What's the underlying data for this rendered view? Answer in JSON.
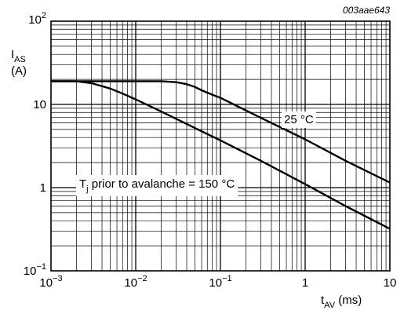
{
  "chart_data": {
    "type": "line",
    "figure_code": "003aae643",
    "ylabel": {
      "main": "I",
      "sub": "AS",
      "unit": "(A)"
    },
    "xlabel": {
      "main": "t",
      "sub": "AV",
      "unit": " (ms)"
    },
    "x_scale": "log",
    "y_scale": "log",
    "xlim": [
      0.001,
      10
    ],
    "ylim": [
      0.1,
      100
    ],
    "grid": true,
    "x_ticks": [
      {
        "base": "10",
        "exp": "−3",
        "plain": ""
      },
      {
        "base": "10",
        "exp": "−2",
        "plain": ""
      },
      {
        "base": "10",
        "exp": "−1",
        "plain": ""
      },
      {
        "base": "",
        "exp": "",
        "plain": "1"
      },
      {
        "base": "",
        "exp": "",
        "plain": "10"
      }
    ],
    "y_ticks": [
      {
        "base": "10",
        "exp": "−1",
        "plain": ""
      },
      {
        "base": "",
        "exp": "",
        "plain": "1"
      },
      {
        "base": "",
        "exp": "",
        "plain": "10"
      },
      {
        "base": "10",
        "exp": "2",
        "plain": ""
      }
    ],
    "series": [
      {
        "name": "25 °C",
        "x": [
          0.001,
          0.002,
          0.005,
          0.01,
          0.02,
          0.03,
          0.04,
          0.05,
          0.06,
          0.08,
          0.1,
          0.3,
          1,
          3,
          10
        ],
        "y": [
          19,
          19,
          19,
          19,
          19,
          18.5,
          17.5,
          16.2,
          14.8,
          13.1,
          12,
          6.9,
          3.8,
          2.1,
          1.15
        ]
      },
      {
        "name": "T",
        "x": [
          0.001,
          0.002,
          0.003,
          0.005,
          0.007,
          0.01,
          0.02,
          0.05,
          0.1,
          0.3,
          1,
          3,
          10
        ],
        "y": [
          19,
          19,
          18,
          15.5,
          13.5,
          11.5,
          8.2,
          5.2,
          3.7,
          2.1,
          1.1,
          0.6,
          0.32
        ]
      }
    ],
    "annotations": [
      {
        "series": 0,
        "text": "25 °C"
      },
      {
        "series": 1,
        "main": "T",
        "sub": "j",
        "rest": " prior to avalanche = 150 °C"
      }
    ]
  }
}
